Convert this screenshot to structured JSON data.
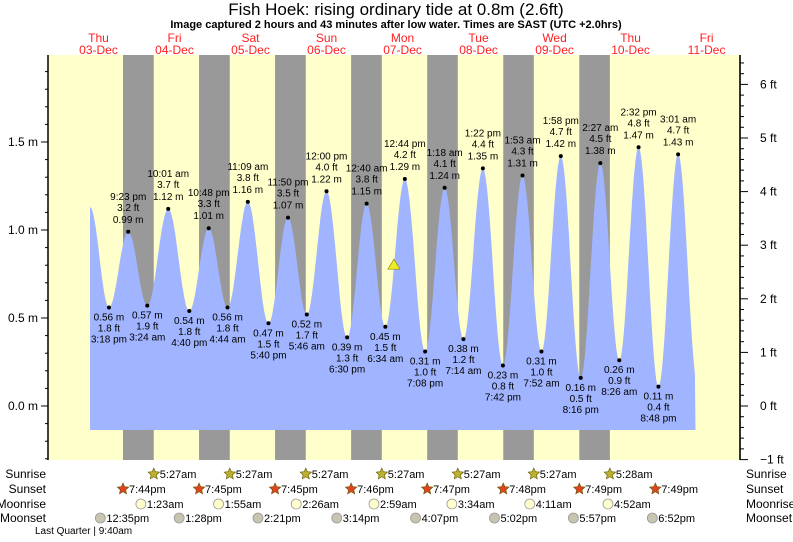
{
  "title": "Fish Hoek: rising  ordinary tide at 0.8m (2.6ft)",
  "subtitle": "Image captured 2 hours and 43 minutes after low water. Times are SAST (UTC +2.0hrs)",
  "colors": {
    "background": "#ffffcc",
    "night": "#999999",
    "water": "#a0b4ff",
    "day_label": "#ff2020",
    "sunrise": "#bbb030",
    "sunset": "#dd4422",
    "moonrise": "#ffffcc",
    "moonset": "#c8c4b0",
    "marker": "#eeee22"
  },
  "chart_data": {
    "type": "area",
    "title": "Fish Hoek: rising  ordinary tide at 0.8m (2.6ft)",
    "left_axis": {
      "unit": "m",
      "ticks": [
        "0.0 m",
        "0.5 m",
        "1.0 m",
        "1.5 m"
      ],
      "values": [
        0,
        0.5,
        1.0,
        1.5
      ],
      "range": [
        -0.3,
        2.0
      ]
    },
    "right_axis": {
      "unit": "ft",
      "ticks": [
        "−1 ft",
        "0 ft",
        "1 ft",
        "2 ft",
        "3 ft",
        "4 ft",
        "5 ft",
        "6 ft"
      ],
      "values": [
        -1,
        0,
        1,
        2,
        3,
        4,
        5,
        6
      ]
    },
    "days": [
      {
        "weekday": "Thu",
        "date": "03-Dec"
      },
      {
        "weekday": "Fri",
        "date": "04-Dec"
      },
      {
        "weekday": "Sat",
        "date": "05-Dec"
      },
      {
        "weekday": "Sun",
        "date": "06-Dec"
      },
      {
        "weekday": "Mon",
        "date": "07-Dec"
      },
      {
        "weekday": "Tue",
        "date": "08-Dec"
      },
      {
        "weekday": "Wed",
        "date": "09-Dec"
      },
      {
        "weekday": "Thu",
        "date": "10-Dec"
      },
      {
        "weekday": "Fri",
        "date": "11-Dec"
      }
    ],
    "extremes": [
      {
        "day": 0,
        "time": "3:18 pm",
        "m": "0.56 m",
        "ft": "1.8 ft",
        "type": "low",
        "v": 0.56
      },
      {
        "day": 0,
        "time": "9:23 pm",
        "m": "0.99 m",
        "ft": "3.2 ft",
        "type": "high",
        "v": 0.99
      },
      {
        "day": 1,
        "time": "3:24 am",
        "m": "0.57 m",
        "ft": "1.9 ft",
        "type": "low",
        "v": 0.57
      },
      {
        "day": 1,
        "time": "10:01 am",
        "m": "1.12 m",
        "ft": "3.7 ft",
        "type": "high",
        "v": 1.12
      },
      {
        "day": 1,
        "time": "4:40 pm",
        "m": "0.54 m",
        "ft": "1.8 ft",
        "type": "low",
        "v": 0.54
      },
      {
        "day": 1,
        "time": "10:48 pm",
        "m": "1.01 m",
        "ft": "3.3 ft",
        "type": "high",
        "v": 1.01
      },
      {
        "day": 2,
        "time": "4:44 am",
        "m": "0.56 m",
        "ft": "1.8 ft",
        "type": "low",
        "v": 0.56
      },
      {
        "day": 2,
        "time": "11:09 am",
        "m": "1.16 m",
        "ft": "3.8 ft",
        "type": "high",
        "v": 1.16
      },
      {
        "day": 2,
        "time": "5:40 pm",
        "m": "0.47 m",
        "ft": "1.5 ft",
        "type": "low",
        "v": 0.47
      },
      {
        "day": 2,
        "time": "11:50 pm",
        "m": "1.07 m",
        "ft": "3.5 ft",
        "type": "high",
        "v": 1.07
      },
      {
        "day": 3,
        "time": "5:46 am",
        "m": "0.52 m",
        "ft": "1.7 ft",
        "type": "low",
        "v": 0.52
      },
      {
        "day": 3,
        "time": "12:00 pm",
        "m": "1.22 m",
        "ft": "4.0 ft",
        "type": "high",
        "v": 1.22
      },
      {
        "day": 3,
        "time": "6:30 pm",
        "m": "0.39 m",
        "ft": "1.3 ft",
        "type": "low",
        "v": 0.39
      },
      {
        "day": 4,
        "time": "12:40 am",
        "m": "1.15 m",
        "ft": "3.8 ft",
        "type": "high",
        "v": 1.15
      },
      {
        "day": 4,
        "time": "6:34 am",
        "m": "0.45 m",
        "ft": "1.5 ft",
        "type": "low",
        "v": 0.45
      },
      {
        "day": 4,
        "time": "12:44 pm",
        "m": "1.29 m",
        "ft": "4.2 ft",
        "type": "high",
        "v": 1.29
      },
      {
        "day": 4,
        "time": "7:08 pm",
        "m": "0.31 m",
        "ft": "1.0 ft",
        "type": "low",
        "v": 0.31
      },
      {
        "day": 5,
        "time": "1:18 am",
        "m": "1.24 m",
        "ft": "4.1 ft",
        "type": "high",
        "v": 1.24
      },
      {
        "day": 5,
        "time": "7:14 am",
        "m": "0.38 m",
        "ft": "1.2 ft",
        "type": "low",
        "v": 0.38
      },
      {
        "day": 5,
        "time": "1:22 pm",
        "m": "1.35 m",
        "ft": "4.4 ft",
        "type": "high",
        "v": 1.35
      },
      {
        "day": 5,
        "time": "7:42 pm",
        "m": "0.23 m",
        "ft": "0.8 ft",
        "type": "low",
        "v": 0.23
      },
      {
        "day": 6,
        "time": "1:53 am",
        "m": "1.31 m",
        "ft": "4.3 ft",
        "type": "high",
        "v": 1.31
      },
      {
        "day": 6,
        "time": "7:52 am",
        "m": "0.31 m",
        "ft": "1.0 ft",
        "type": "low",
        "v": 0.31
      },
      {
        "day": 6,
        "time": "1:58 pm",
        "m": "1.42 m",
        "ft": "4.7 ft",
        "type": "high",
        "v": 1.42
      },
      {
        "day": 6,
        "time": "8:16 pm",
        "m": "0.16 m",
        "ft": "0.5 ft",
        "type": "low",
        "v": 0.16
      },
      {
        "day": 7,
        "time": "2:27 am",
        "m": "1.38 m",
        "ft": "4.5 ft",
        "type": "high",
        "v": 1.38
      },
      {
        "day": 7,
        "time": "8:26 am",
        "m": "0.26 m",
        "ft": "0.9 ft",
        "type": "low",
        "v": 0.26
      },
      {
        "day": 7,
        "time": "2:32 pm",
        "m": "1.47 m",
        "ft": "4.8 ft",
        "type": "high",
        "v": 1.47
      },
      {
        "day": 7,
        "time": "8:48 pm",
        "m": "0.11 m",
        "ft": "0.4 ft",
        "type": "low",
        "v": 0.11
      },
      {
        "day": 8,
        "time": "3:01 am",
        "m": "1.43 m",
        "ft": "4.7 ft",
        "type": "high",
        "v": 1.43
      }
    ],
    "current": {
      "day": 4,
      "time": "9:17 am",
      "v": 0.8
    }
  },
  "rows": {
    "sunrise": {
      "label": "Sunrise",
      "items": [
        {
          "day": 1,
          "time": "5:27am"
        },
        {
          "day": 2,
          "time": "5:27am"
        },
        {
          "day": 3,
          "time": "5:27am"
        },
        {
          "day": 4,
          "time": "5:27am"
        },
        {
          "day": 5,
          "time": "5:27am"
        },
        {
          "day": 6,
          "time": "5:27am"
        },
        {
          "day": 7,
          "time": "5:28am"
        }
      ]
    },
    "sunset": {
      "label": "Sunset",
      "items": [
        {
          "day": 0,
          "time": "7:44pm"
        },
        {
          "day": 1,
          "time": "7:45pm"
        },
        {
          "day": 2,
          "time": "7:45pm"
        },
        {
          "day": 3,
          "time": "7:46pm"
        },
        {
          "day": 4,
          "time": "7:47pm"
        },
        {
          "day": 5,
          "time": "7:48pm"
        },
        {
          "day": 6,
          "time": "7:49pm"
        },
        {
          "day": 7,
          "time": "7:49pm"
        }
      ]
    },
    "moonrise": {
      "label": "Moonrise",
      "items": [
        {
          "day": 1,
          "time": "1:23am"
        },
        {
          "day": 2,
          "time": "1:55am"
        },
        {
          "day": 3,
          "time": "2:26am"
        },
        {
          "day": 4,
          "time": "2:59am"
        },
        {
          "day": 5,
          "time": "3:34am"
        },
        {
          "day": 6,
          "time": "4:11am"
        },
        {
          "day": 7,
          "time": "4:52am"
        }
      ]
    },
    "moonset": {
      "label": "Moonset",
      "items": [
        {
          "day": 0,
          "time": "12:35pm"
        },
        {
          "day": 1,
          "time": "1:28pm"
        },
        {
          "day": 2,
          "time": "2:21pm"
        },
        {
          "day": 3,
          "time": "3:14pm"
        },
        {
          "day": 4,
          "time": "4:07pm"
        },
        {
          "day": 5,
          "time": "5:02pm"
        },
        {
          "day": 6,
          "time": "5:57pm"
        },
        {
          "day": 7,
          "time": "6:52pm"
        }
      ]
    }
  },
  "moon_phase": "Last Quarter | 9:40am"
}
